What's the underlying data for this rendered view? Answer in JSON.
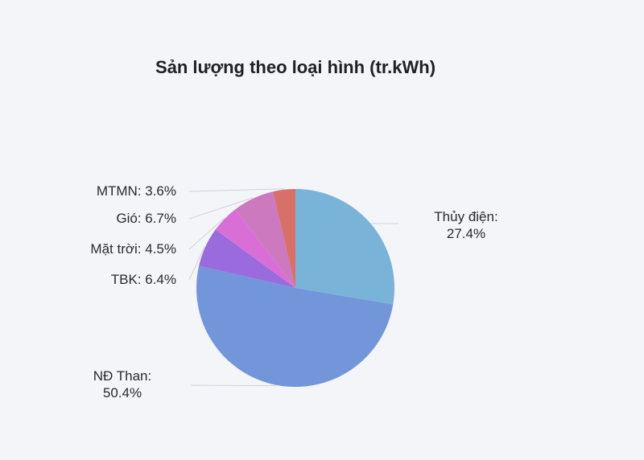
{
  "chart_data": {
    "type": "pie",
    "title": "Sản lượng theo loại hình (tr.kWh)",
    "slices": [
      {
        "label": "Thủy điện",
        "value": 27.4,
        "text": [
          "Thủy điện:",
          "27.4%"
        ],
        "color": "#7ab3d8"
      },
      {
        "label": "NĐ Than",
        "value": 50.4,
        "text": [
          "NĐ Than:",
          "50.4%"
        ],
        "color": "#7395da"
      },
      {
        "label": "TBK",
        "value": 6.4,
        "text": [
          "TBK: 6.4%"
        ],
        "color": "#9a6bdc"
      },
      {
        "label": "Mặt trời",
        "value": 4.5,
        "text": [
          "Mặt trời: 4.5%"
        ],
        "color": "#d96fd6"
      },
      {
        "label": "Gió",
        "value": 6.7,
        "text": [
          "Gió: 6.7%"
        ],
        "color": "#cc79bf"
      },
      {
        "label": "MTMN",
        "value": 3.6,
        "text": [
          "MTMN: 3.6%"
        ],
        "color": "#d8706a"
      }
    ]
  }
}
